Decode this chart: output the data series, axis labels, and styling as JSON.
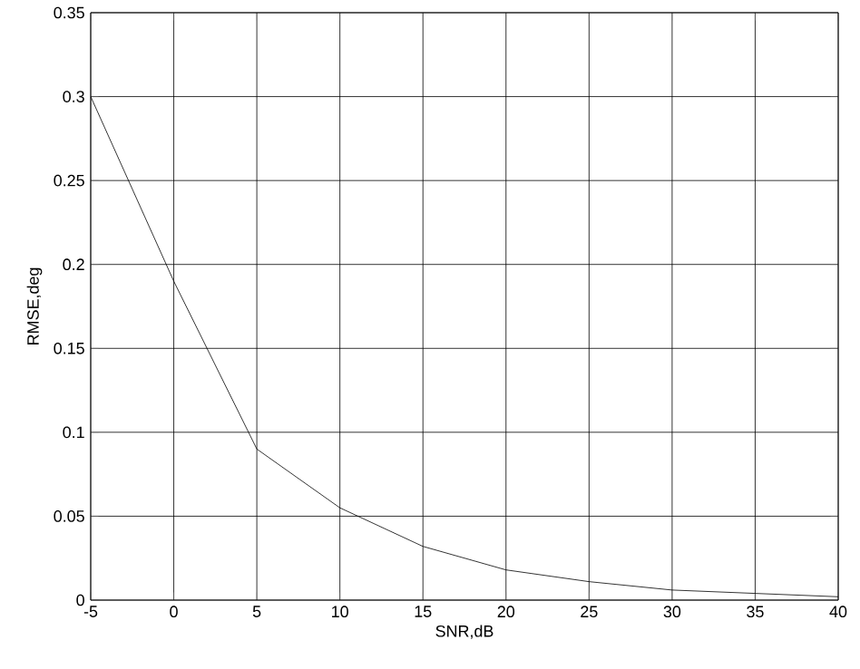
{
  "chart_data": {
    "type": "line",
    "xlabel": "SNR,dB",
    "ylabel": "RMSE,deg",
    "x": [
      -5,
      0,
      5,
      10,
      15,
      20,
      25,
      30,
      35,
      40
    ],
    "series": [
      {
        "color": "#000000",
        "values": [
          0.3,
          0.19,
          0.09,
          0.055,
          0.032,
          0.018,
          0.011,
          0.006,
          0.004,
          0.002
        ]
      }
    ],
    "xlim": [
      -5,
      40
    ],
    "ylim": [
      0,
      0.35
    ],
    "xticks": [
      -5,
      0,
      5,
      10,
      15,
      20,
      25,
      30,
      35,
      40
    ],
    "yticks": [
      0,
      0.05,
      0.1,
      0.15,
      0.2,
      0.25,
      0.3,
      0.35
    ],
    "grid": true,
    "marker": "none",
    "line_style": "solid"
  }
}
